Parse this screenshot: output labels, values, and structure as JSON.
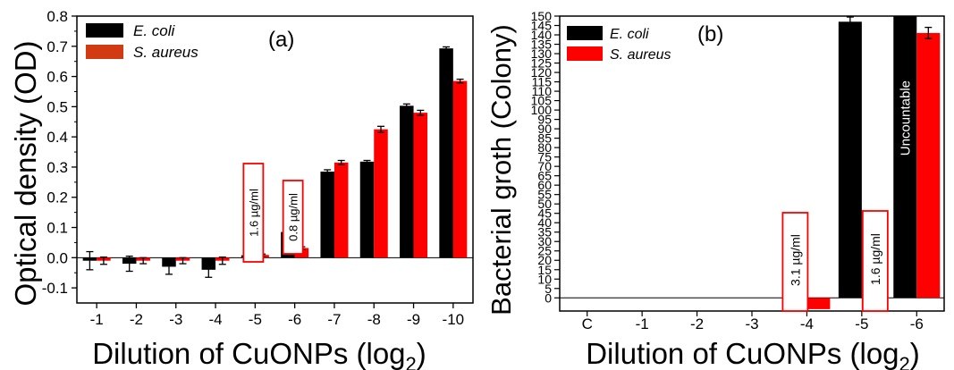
{
  "chart_data": [
    {
      "type": "bar",
      "panel_label": "(a)",
      "xlabel_main": "Dilution of CuONPs (log",
      "xlabel_sub": "2",
      "xlabel_close": ")",
      "ylabel": "Optical density (OD)",
      "categories": [
        "-1",
        "-2",
        "-3",
        "-4",
        "-5",
        "-6",
        "-7",
        "-8",
        "-9",
        "-10"
      ],
      "ylim": [
        -0.15,
        0.8
      ],
      "yticks": [
        "-0.1",
        "0.0",
        "0.1",
        "0.2",
        "0.3",
        "0.4",
        "0.5",
        "0.6",
        "0.7",
        "0.8"
      ],
      "ytick_values": [
        -0.1,
        0,
        0.1,
        0.2,
        0.3,
        0.4,
        0.5,
        0.6,
        0.7,
        0.8
      ],
      "legend_position": "top-left",
      "series": [
        {
          "name": "E. coli",
          "color": "#000000",
          "values": [
            -0.01,
            -0.02,
            -0.03,
            -0.04,
            0.008,
            0.085,
            0.285,
            0.318,
            0.503,
            0.693
          ],
          "errors": [
            0.03,
            0.025,
            0.025,
            0.025,
            0.003,
            0.004,
            0.006,
            0.004,
            0.006,
            0.005
          ]
        },
        {
          "name": "S. aureus",
          "color": "#ff0000",
          "values": [
            -0.01,
            -0.01,
            -0.01,
            -0.01,
            0.009,
            0.032,
            0.315,
            0.425,
            0.48,
            0.585
          ],
          "errors": [
            0.012,
            0.01,
            0.01,
            0.012,
            0.003,
            0.004,
            0.007,
            0.01,
            0.008,
            0.006
          ]
        }
      ],
      "legend_swatch_colors": [
        "#000000",
        "#d23a12"
      ],
      "annotations": [
        {
          "text": "1.6 µg/ml",
          "category": "-5"
        },
        {
          "text": "0.8 µg/ml",
          "category": "-6"
        }
      ]
    },
    {
      "type": "bar",
      "panel_label": "(b)",
      "xlabel_main": "Dilution of CuONPs (log",
      "xlabel_sub": "2",
      "xlabel_close": ")",
      "ylabel": "Bacterial groth (Colony)",
      "categories": [
        "C",
        "-1",
        "-2",
        "-3",
        "-4",
        "-5",
        "-6"
      ],
      "ylim": [
        -7,
        150
      ],
      "yticks": [
        "0",
        "5",
        "10",
        "15",
        "20",
        "25",
        "30",
        "35",
        "40",
        "45",
        "50",
        "55",
        "60",
        "65",
        "70",
        "75",
        "80",
        "85",
        "90",
        "95",
        "100",
        "105",
        "110",
        "115",
        "120",
        "125",
        "130",
        "135",
        "140",
        "145",
        "150"
      ],
      "legend_position": "top-left",
      "series": [
        {
          "name": "E. coli",
          "color": "#000000",
          "values": [
            0,
            0,
            0,
            0,
            -6,
            147,
            150
          ],
          "errors": [
            0,
            0,
            0,
            0,
            0,
            2.5,
            0
          ]
        },
        {
          "name": "S. aureus",
          "color": "#ff0000",
          "values": [
            0,
            0,
            0,
            0,
            -6,
            -6,
            141
          ],
          "errors": [
            0,
            0,
            0,
            0,
            0,
            0,
            3
          ]
        }
      ],
      "annotations": [
        {
          "text": "3.1 µg/ml",
          "category": "-4"
        },
        {
          "text": "1.6 µg/ml",
          "category": "-5"
        },
        {
          "text": "Uncountable",
          "category": "-6"
        }
      ]
    }
  ]
}
